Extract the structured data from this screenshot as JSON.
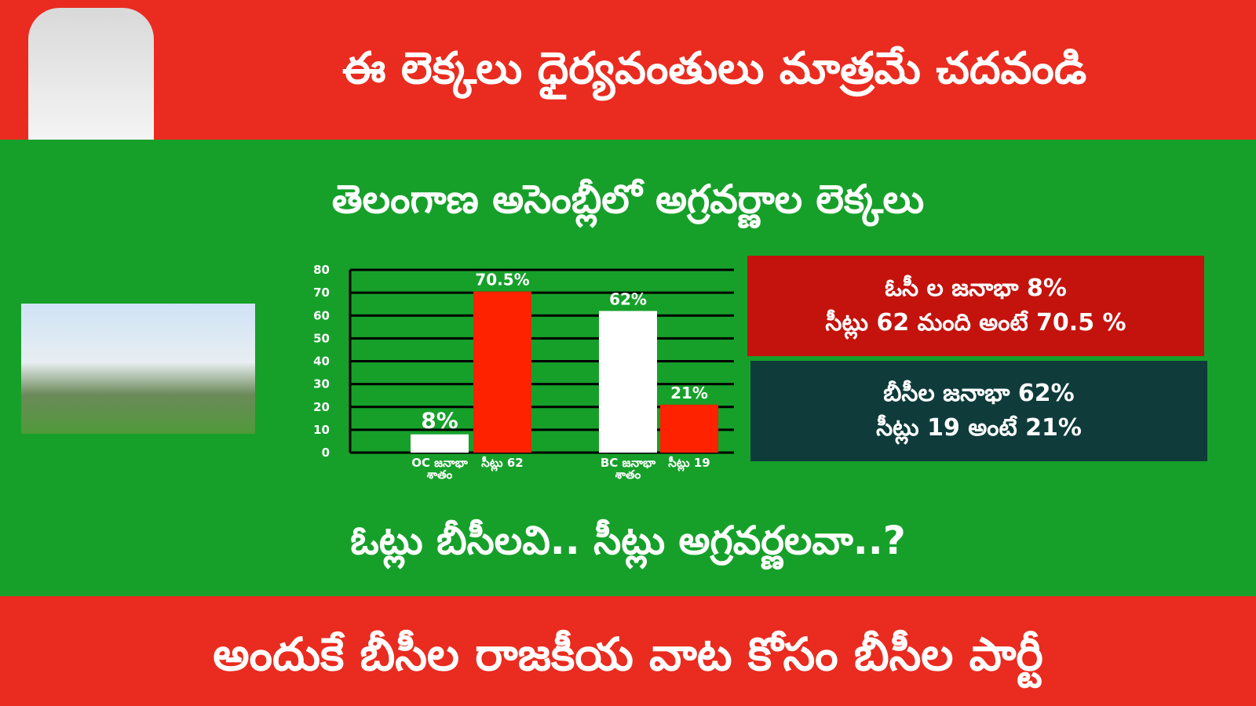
{
  "header": {
    "title": "ఈ లెక్కలు ధైర్యవంతులు మాత్రమే చదవండి"
  },
  "subtitle": "తెలంగాణ అసెంబ్లీలో అగ్రవర్ణాల లెక్కలు",
  "chart_data": {
    "type": "bar",
    "categories": [
      "OC జనాభా శాతం",
      "సీట్లు 62",
      "BC జనాభా శాతం",
      "సీట్లు 19"
    ],
    "values": [
      8,
      70.5,
      62,
      21
    ],
    "value_labels": [
      "8%",
      "70.5%",
      "62%",
      "21%"
    ],
    "colors": [
      "#ffffff",
      "#ff2200",
      "#ffffff",
      "#ff2200"
    ],
    "ylim": [
      0,
      80
    ],
    "yticks": [
      0,
      10,
      20,
      30,
      40,
      50,
      60,
      70,
      80
    ],
    "grid": true
  },
  "info_boxes": [
    {
      "lines": [
        "ఓసీ ల జనాభా 8%",
        "సీట్లు 62 మంది అంటే 70.5 %"
      ]
    },
    {
      "lines": [
        "బీసీల జనాభా 62%",
        "సీట్లు 19 అంటే 21%"
      ]
    }
  ],
  "question": "ఓట్లు బీసీలవి.. సీట్లు అగ్రవర్ణలవా..?",
  "footer": "అందుకే బీసీల రాజకీయ వాట కోసం బీసీల పార్టీ"
}
